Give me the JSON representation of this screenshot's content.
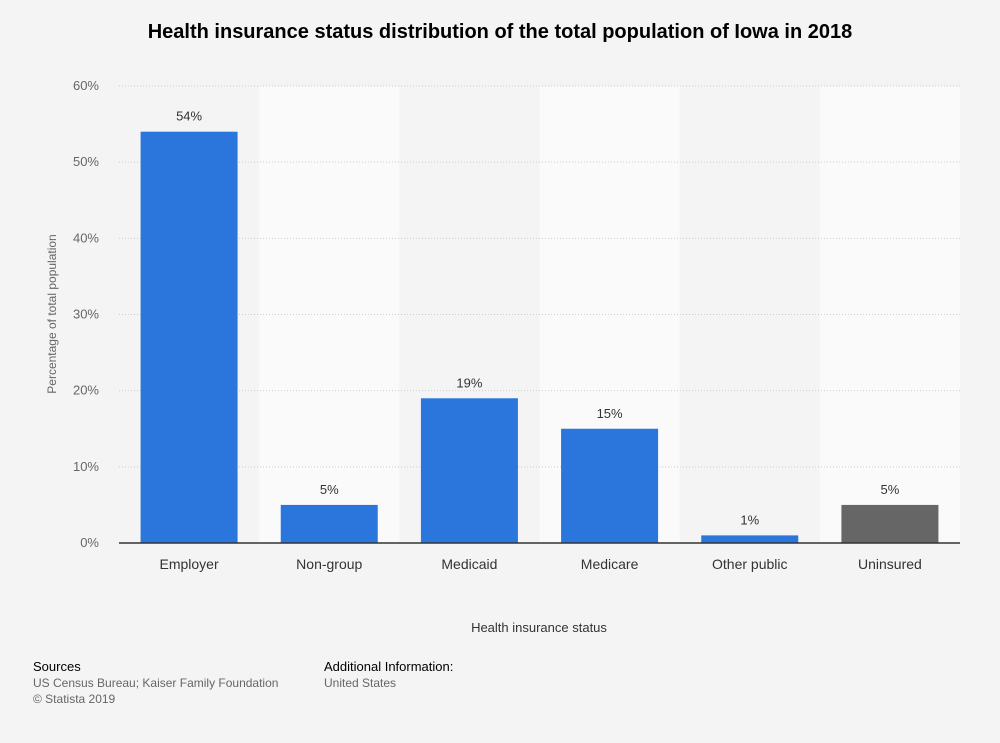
{
  "chart_data": {
    "type": "bar",
    "title": "Health insurance status distribution of the total population of Iowa in 2018",
    "xlabel": "Health insurance status",
    "ylabel": "Percentage of total population",
    "categories": [
      "Employer",
      "Non-group",
      "Medicaid",
      "Medicare",
      "Other public",
      "Uninsured"
    ],
    "values": [
      54,
      5,
      19,
      15,
      1,
      5
    ],
    "data_labels": [
      "54%",
      "5%",
      "19%",
      "15%",
      "1%",
      "5%"
    ],
    "bar_colors": [
      "#2a76dd",
      "#2a76dd",
      "#2a76dd",
      "#2a76dd",
      "#2a76dd",
      "#666666"
    ],
    "ylim": [
      0,
      60
    ],
    "yticks": [
      0,
      10,
      20,
      30,
      40,
      50,
      60
    ],
    "ytick_labels": [
      "0%",
      "10%",
      "20%",
      "30%",
      "40%",
      "50%",
      "60%"
    ],
    "grid": true,
    "legend": "none"
  },
  "footer": {
    "sources_heading": "Sources",
    "sources_text": "US Census Bureau; Kaiser Family Foundation",
    "copyright": "© Statista 2019",
    "additional_heading": "Additional Information:",
    "additional_text": "United States"
  }
}
